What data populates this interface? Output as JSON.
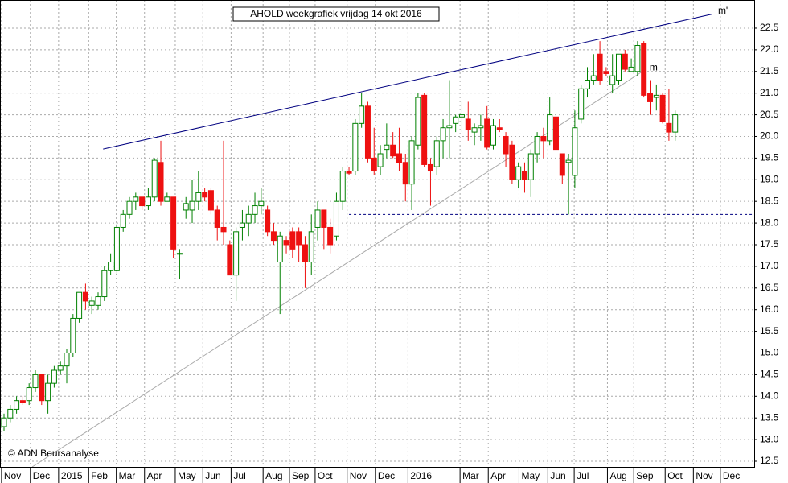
{
  "chart_data": {
    "type": "candlestick",
    "title": "AHOLD weekgrafiek vrijdag 14 okt 2016",
    "copyright": "© ADN Beursanalyse",
    "up_color": "#008000",
    "down_color": "#ee1111",
    "grid": true,
    "ylim": [
      12.37,
      23.15
    ],
    "yticks": [
      {
        "value": 12.5,
        "label": "12.5"
      },
      13,
      {
        "value": 13.0,
        "label": "13.0"
      },
      13.5,
      {
        "value": 14.0,
        "label": "14.0"
      },
      14.5,
      {
        "value": 15.0,
        "label": "15.0"
      },
      15.5,
      {
        "value": 16.0,
        "label": "16.0"
      },
      16.5,
      {
        "value": 17.0,
        "label": "17.0"
      },
      17.5,
      {
        "value": 18.0,
        "label": "18.0"
      },
      18.5,
      {
        "value": 19.0,
        "label": "19.0"
      },
      19.5,
      {
        "value": 20.0,
        "label": "20.0"
      },
      20.5,
      {
        "value": 21.0,
        "label": "21.0"
      },
      21.5,
      {
        "value": 22.0,
        "label": "22.0"
      },
      22.5
    ],
    "xlim": [
      -0.64,
      119.6
    ],
    "xticks": [
      {
        "value": -0.4,
        "label": "Nov"
      },
      {
        "value": 4.2,
        "label": "Dec"
      },
      {
        "value": 8.7,
        "label": "2015"
      },
      {
        "value": 13.5,
        "label": "Feb"
      },
      {
        "value": 17.9,
        "label": "Mar"
      },
      {
        "value": 22.4,
        "label": "Apr"
      },
      {
        "value": 27.3,
        "label": "May"
      },
      {
        "value": 31.7,
        "label": "Jun"
      },
      {
        "value": 36.2,
        "label": "Jul"
      },
      {
        "value": 41.3,
        "label": "Aug"
      },
      {
        "value": 45.5,
        "label": "Sep"
      },
      {
        "value": 49.6,
        "label": "Oct"
      },
      {
        "value": 54.7,
        "label": "Nov"
      },
      {
        "value": 59.2,
        "label": "Dec"
      },
      {
        "value": 64.4,
        "label": "2016"
      },
      {
        "value": 72.7,
        "label": "Mar"
      },
      {
        "value": 77.2,
        "label": "Apr"
      },
      {
        "value": 82.1,
        "label": "May"
      },
      {
        "value": 86.7,
        "label": "Jun"
      },
      {
        "value": 90.9,
        "label": "Jul"
      },
      {
        "value": 96.2,
        "label": "Aug"
      },
      {
        "value": 100.4,
        "label": "Sep"
      },
      {
        "value": 105.4,
        "label": "Oct"
      },
      {
        "value": 109.9,
        "label": "Nov"
      },
      {
        "value": 114.2,
        "label": "Dec"
      }
    ],
    "trendlines": [
      {
        "label": "m'",
        "color": "#000080",
        "x": [
          15.8,
          112.8
        ],
        "y": [
          19.71,
          22.82
        ]
      },
      {
        "label": "m",
        "color": "#aaaaaa",
        "x": [
          4.5,
          101.9
        ],
        "y": [
          12.37,
          21.51
        ]
      }
    ],
    "support": {
      "color": "#000080",
      "x": [
        55,
        119.6
      ],
      "y": 18.2
    },
    "ohlc": [
      [
        13.3,
        13.6,
        13.2,
        13.5
      ],
      [
        13.5,
        13.8,
        13.4,
        13.7
      ],
      [
        13.7,
        14.0,
        13.6,
        13.9
      ],
      [
        13.9,
        14.0,
        13.8,
        13.85
      ],
      [
        13.9,
        14.3,
        13.8,
        14.2
      ],
      [
        14.2,
        14.6,
        14.1,
        14.5
      ],
      [
        14.5,
        14.5,
        13.8,
        13.9
      ],
      [
        13.9,
        14.5,
        13.6,
        14.3
      ],
      [
        14.3,
        14.7,
        14.2,
        14.6
      ],
      [
        14.6,
        14.8,
        14.5,
        14.7
      ],
      [
        14.7,
        15.1,
        14.3,
        15.0
      ],
      [
        15.0,
        15.9,
        14.9,
        15.8
      ],
      [
        15.8,
        16.4,
        15.7,
        16.4
      ],
      [
        16.4,
        16.6,
        16.0,
        16.2
      ],
      [
        16.1,
        16.3,
        15.9,
        16.2
      ],
      [
        16.1,
        16.4,
        16.0,
        16.3
      ],
      [
        16.3,
        17.0,
        16.2,
        16.9
      ],
      [
        16.9,
        17.3,
        16.8,
        17.1
      ],
      [
        16.9,
        18.0,
        16.8,
        17.9
      ],
      [
        17.9,
        18.3,
        17.8,
        18.2
      ],
      [
        18.2,
        18.6,
        18.1,
        18.5
      ],
      [
        18.5,
        18.7,
        18.3,
        18.6
      ],
      [
        18.6,
        18.6,
        18.3,
        18.4
      ],
      [
        18.4,
        18.8,
        18.3,
        18.6
      ],
      [
        18.6,
        19.5,
        18.5,
        19.45
      ],
      [
        19.4,
        19.9,
        18.4,
        18.5
      ],
      [
        18.5,
        18.7,
        18.5,
        18.6
      ],
      [
        18.6,
        18.6,
        17.2,
        17.4
      ],
      [
        17.3,
        17.4,
        16.7,
        17.3
      ],
      [
        18.3,
        18.6,
        18.1,
        18.45
      ],
      [
        18.3,
        19.0,
        18.0,
        18.5
      ],
      [
        18.5,
        19.2,
        18.3,
        18.7
      ],
      [
        18.7,
        18.8,
        18.5,
        18.6
      ],
      [
        18.75,
        18.8,
        18.2,
        18.3
      ],
      [
        18.3,
        18.4,
        17.6,
        17.9
      ],
      [
        17.9,
        19.9,
        17.5,
        17.8
      ],
      [
        17.5,
        17.6,
        16.8,
        16.8
      ],
      [
        16.8,
        17.9,
        16.2,
        17.8
      ],
      [
        17.9,
        18.3,
        17.6,
        18.0
      ],
      [
        18.0,
        18.4,
        17.7,
        18.2
      ],
      [
        18.2,
        18.7,
        18.0,
        18.4
      ],
      [
        18.4,
        18.8,
        18.2,
        18.5
      ],
      [
        18.3,
        18.4,
        17.7,
        17.8
      ],
      [
        17.8,
        18.0,
        17.5,
        17.6
      ],
      [
        17.1,
        17.8,
        15.9,
        17.7
      ],
      [
        17.6,
        17.7,
        17.3,
        17.5
      ],
      [
        17.8,
        17.9,
        17.2,
        17.4
      ],
      [
        17.8,
        17.9,
        17.1,
        17.5
      ],
      [
        17.5,
        17.7,
        16.5,
        17.1
      ],
      [
        17.1,
        18.2,
        16.8,
        17.8
      ],
      [
        17.9,
        18.5,
        17.6,
        18.3
      ],
      [
        18.3,
        18.3,
        17.4,
        17.9
      ],
      [
        17.9,
        18.1,
        17.3,
        17.5
      ],
      [
        17.7,
        18.7,
        17.6,
        18.5
      ],
      [
        18.5,
        19.3,
        18.3,
        19.2
      ],
      [
        19.2,
        19.3,
        19.1,
        19.15
      ],
      [
        19.2,
        20.4,
        19.1,
        20.3
      ],
      [
        20.3,
        21.0,
        20.2,
        20.7
      ],
      [
        20.7,
        20.8,
        19.4,
        19.5
      ],
      [
        19.5,
        20.2,
        19.1,
        19.2
      ],
      [
        19.3,
        19.8,
        19.1,
        19.6
      ],
      [
        19.7,
        20.3,
        19.5,
        19.8
      ],
      [
        19.8,
        20.1,
        19.5,
        19.55
      ],
      [
        19.6,
        20.2,
        19.2,
        19.4
      ],
      [
        19.4,
        19.6,
        18.5,
        18.9
      ],
      [
        18.9,
        20.0,
        18.3,
        19.9
      ],
      [
        19.8,
        21.0,
        19.7,
        20.9
      ],
      [
        20.95,
        21.0,
        19.3,
        19.35
      ],
      [
        19.35,
        19.5,
        18.4,
        19.2
      ],
      [
        19.3,
        20.0,
        19.1,
        19.9
      ],
      [
        19.9,
        20.4,
        19.5,
        20.2
      ],
      [
        20.2,
        21.3,
        19.5,
        20.25
      ],
      [
        20.3,
        20.5,
        20.1,
        20.45
      ],
      [
        20.45,
        20.8,
        20.1,
        20.5
      ],
      [
        20.4,
        20.8,
        19.9,
        20.15
      ],
      [
        20.1,
        20.3,
        19.8,
        20.2
      ],
      [
        20.2,
        20.5,
        19.9,
        20.25
      ],
      [
        20.4,
        20.7,
        19.7,
        19.75
      ],
      [
        19.8,
        20.4,
        19.7,
        20.25
      ],
      [
        20.2,
        20.4,
        20.1,
        20.15
      ],
      [
        20.0,
        20.1,
        19.3,
        19.6
      ],
      [
        19.8,
        19.9,
        18.9,
        19.0
      ],
      [
        19.0,
        19.4,
        18.8,
        19.3
      ],
      [
        19.2,
        19.4,
        18.7,
        19.0
      ],
      [
        19.0,
        19.7,
        18.6,
        19.6
      ],
      [
        19.6,
        20.1,
        19.4,
        20.0
      ],
      [
        20.0,
        20.2,
        19.5,
        19.9
      ],
      [
        19.9,
        20.9,
        19.8,
        20.5
      ],
      [
        20.45,
        20.6,
        19.6,
        19.7
      ],
      [
        19.6,
        19.6,
        18.9,
        19.1
      ],
      [
        19.4,
        19.6,
        18.2,
        19.45
      ],
      [
        19.1,
        20.6,
        18.8,
        20.2
      ],
      [
        20.4,
        21.2,
        20.3,
        21.1
      ],
      [
        21.1,
        21.6,
        20.9,
        21.3
      ],
      [
        21.3,
        21.9,
        21.2,
        21.4
      ],
      [
        21.9,
        22.2,
        21.2,
        21.3
      ],
      [
        21.5,
        21.6,
        21.4,
        21.45
      ],
      [
        21.2,
        21.9,
        21.0,
        21.4
      ],
      [
        21.3,
        21.9,
        21.2,
        21.9
      ],
      [
        21.9,
        22.0,
        21.5,
        21.55
      ],
      [
        21.5,
        21.8,
        21.5,
        21.6
      ],
      [
        21.5,
        22.2,
        21.4,
        22.1
      ],
      [
        22.15,
        22.2,
        20.9,
        20.95
      ],
      [
        21.0,
        21.3,
        20.5,
        20.8
      ],
      [
        20.9,
        21.2,
        20.6,
        20.95
      ],
      [
        20.95,
        21.0,
        20.3,
        20.35
      ],
      [
        20.3,
        21.1,
        19.9,
        20.1
      ],
      [
        20.1,
        20.6,
        19.9,
        20.5
      ]
    ]
  }
}
